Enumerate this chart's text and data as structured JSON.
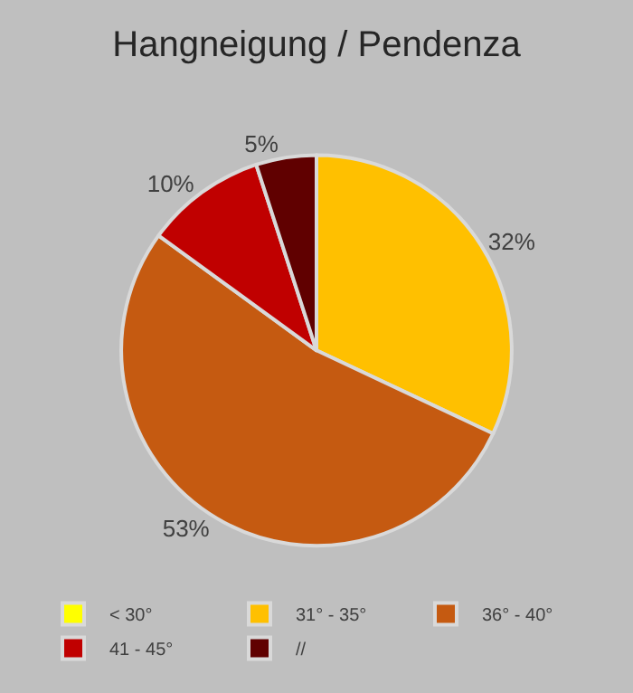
{
  "chart_data": {
    "type": "pie",
    "title": "Hangneigung / Pendenza",
    "categories": [
      "< 30°",
      "31° - 35°",
      "36° - 40°",
      "41 - 45°",
      "//"
    ],
    "values": [
      0,
      32,
      53,
      10,
      5
    ],
    "value_labels": [
      null,
      "32%",
      "53%",
      "10%",
      "5%"
    ],
    "colors": [
      "#ffff00",
      "#ffc000",
      "#c55a11",
      "#c00000",
      "#600000"
    ],
    "legend": "bottom"
  }
}
